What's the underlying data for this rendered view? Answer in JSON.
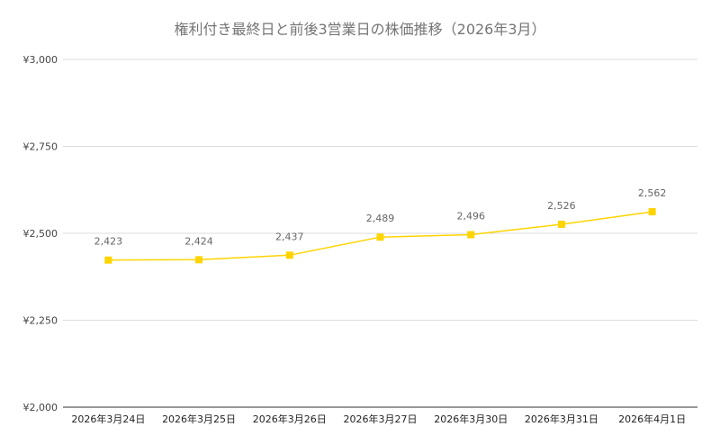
{
  "chart_data": {
    "type": "line",
    "title": "権利付き最終日と前後3営業日の株価推移（2026年3月）",
    "xlabel": "",
    "ylabel": "",
    "categories": [
      "2026年3月24日",
      "2026年3月25日",
      "2026年3月26日",
      "2026年3月27日",
      "2026年3月30日",
      "2026年3月31日",
      "2026年4月1日"
    ],
    "series": [
      {
        "values": [
          2423,
          2424,
          2437,
          2489,
          2496,
          2526,
          2562
        ],
        "labels": [
          "2,423",
          "2,424",
          "2,437",
          "2,489",
          "2,496",
          "2,526",
          "2,562"
        ],
        "color": "#FFD400",
        "marker": "square"
      }
    ],
    "ylim": [
      2000,
      3000
    ],
    "yticks": [
      2000,
      2250,
      2500,
      2750,
      3000
    ],
    "ytick_labels": [
      "¥2,000",
      "¥2,250",
      "¥2,500",
      "¥2,750",
      "¥3,000"
    ],
    "grid": true,
    "legend": "none"
  }
}
